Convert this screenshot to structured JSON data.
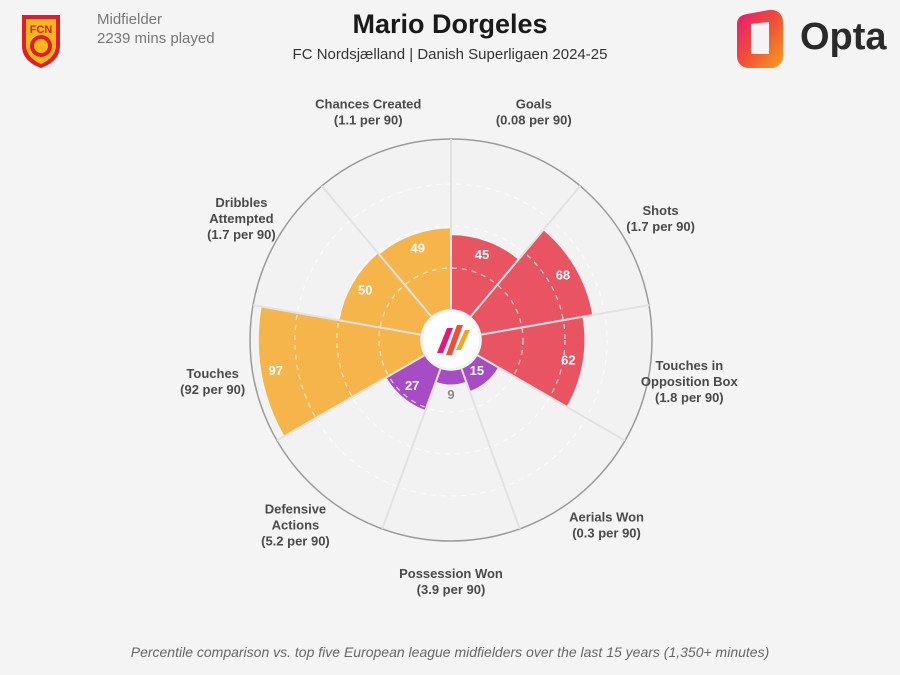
{
  "header": {
    "position": "Midfielder",
    "minutes": "2239 mins played",
    "title": "Mario Dorgeles",
    "subtitle": "FC Nordsjælland | Danish Superligaen 2024-25",
    "brand": "Opta",
    "club_badge_text": "FCN"
  },
  "footnote": "Percentile comparison vs. top five European league midfielders over the last 15 years (1,350+ minutes)",
  "colors": {
    "attacking": "#e85462",
    "possession": "#f6b54b",
    "defending": "#a64cc4",
    "low_value_text": "#8a8a8a"
  },
  "chart_data": {
    "type": "polar-bar",
    "value_scale": "percentile",
    "rlim": [
      0,
      100
    ],
    "metrics": [
      {
        "name": "Goals",
        "rate": "(0.08 per 90)",
        "percentile": 45,
        "group": "attacking"
      },
      {
        "name": "Shots",
        "rate": "(1.7 per 90)",
        "percentile": 68,
        "group": "attacking"
      },
      {
        "name": "Touches in Opposition Box",
        "label_lines": [
          "Touches in",
          "Opposition Box"
        ],
        "rate": "(1.8 per 90)",
        "percentile": 62,
        "group": "attacking"
      },
      {
        "name": "Aerials Won",
        "rate": "(0.3 per 90)",
        "percentile": 15,
        "group": "defending"
      },
      {
        "name": "Possession Won",
        "rate": "(3.9 per 90)",
        "percentile": 9,
        "group": "defending"
      },
      {
        "name": "Defensive Actions",
        "label_lines": [
          "Defensive",
          "Actions"
        ],
        "rate": "(5.2 per 90)",
        "percentile": 27,
        "group": "defending"
      },
      {
        "name": "Touches",
        "rate": "(92 per 90)",
        "percentile": 97,
        "group": "possession"
      },
      {
        "name": "Dribbles Attempted",
        "label_lines": [
          "Dribbles",
          "Attempted"
        ],
        "rate": "(1.7 per 90)",
        "percentile": 50,
        "group": "possession"
      },
      {
        "name": "Chances Created",
        "rate": "(1.1 per 90)",
        "percentile": 49,
        "group": "possession"
      }
    ]
  }
}
